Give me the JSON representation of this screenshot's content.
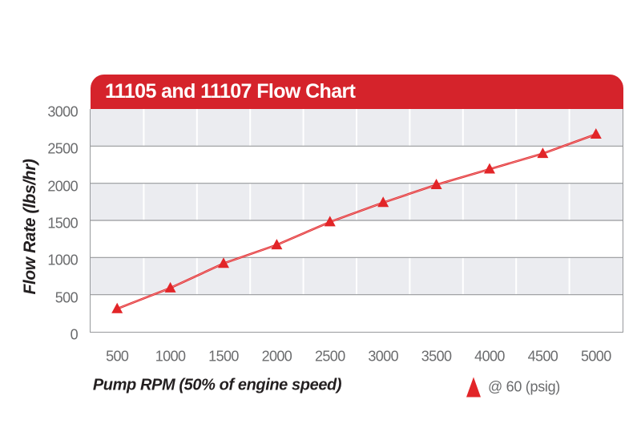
{
  "title_bar": {
    "title": "11105 and 11107 Flow Chart",
    "bg_color": "#d5232b",
    "text_color": "#ffffff"
  },
  "chart_data": {
    "type": "line",
    "title": "11105 and 11107 Flow Chart",
    "xlabel": "Pump RPM (50% of engine speed)",
    "ylabel": "Flow Rate (lbs/hr)",
    "x": [
      500,
      1000,
      1500,
      2000,
      2500,
      3000,
      3500,
      4000,
      4500,
      5000
    ],
    "yticks": [
      0,
      500,
      1000,
      1500,
      2000,
      2500,
      3000
    ],
    "ylim": [
      0,
      3000
    ],
    "series": [
      {
        "name": "@ 60 (psig)",
        "marker": "triangle",
        "color": "#e22528",
        "values": [
          310,
          590,
          920,
          1170,
          1480,
          1740,
          1980,
          2190,
          2400,
          2660
        ]
      }
    ],
    "legend": {
      "label": "@ 60 (psig)",
      "position": "bottom-right"
    },
    "grid": {
      "band_colors": [
        "#ebecf0",
        "#ffffff"
      ],
      "h_line_color": "#97999c",
      "v_line_color": "#ffffff"
    }
  },
  "colors": {
    "accent_red": "#d5232b",
    "series_red": "#e22528",
    "band_gray": "#ebecf0",
    "grid_gray": "#97999c",
    "tick_text": "#6b6c6e",
    "axis_text": "#231f20"
  }
}
